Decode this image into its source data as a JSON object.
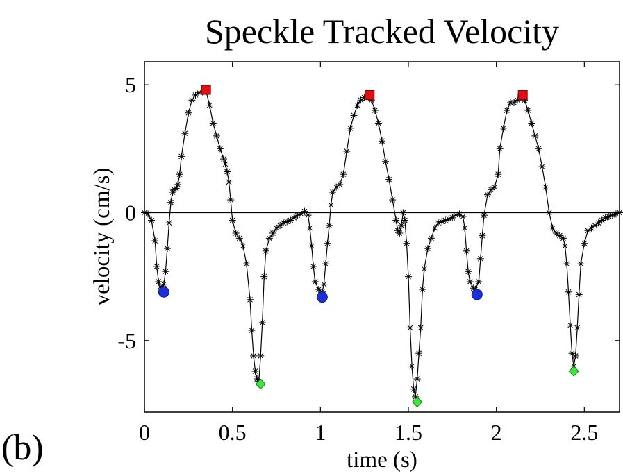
{
  "panel_label": "(b)",
  "chart_data": {
    "type": "line",
    "title": "Speckle Tracked Velocity",
    "xlabel": "time (s)",
    "ylabel": "velocity (cm/s)",
    "xlim": [
      0,
      2.7
    ],
    "ylim": [
      -7.8,
      5.9
    ],
    "xticks": [
      0,
      0.5,
      1,
      1.5,
      2,
      2.5
    ],
    "xtick_labels": [
      "0",
      "0.5",
      "1",
      "1.5",
      "2",
      "2.5"
    ],
    "yticks": [
      5,
      0,
      -5
    ],
    "ytick_labels": [
      "5",
      "0",
      "-5"
    ],
    "grid": false,
    "legend": "none",
    "zero_line": true,
    "colors": {
      "trace": "#000000",
      "blue_markers": "#1f2fd6",
      "red_markers": "#e01010",
      "green_markers": "#3ee63e"
    },
    "series": [
      {
        "marker": "asterisk",
        "points": [
          [
            0.0,
            0.0
          ],
          [
            0.02,
            -0.05
          ],
          [
            0.04,
            -0.3
          ],
          [
            0.06,
            -1.1
          ],
          [
            0.07,
            -2.1
          ],
          [
            0.08,
            -2.7
          ],
          [
            0.09,
            -2.9
          ],
          [
            0.1,
            -3.0
          ],
          [
            0.11,
            -2.8
          ],
          [
            0.12,
            -2.3
          ],
          [
            0.13,
            -1.4
          ],
          [
            0.14,
            -0.4
          ],
          [
            0.15,
            0.4
          ],
          [
            0.16,
            0.8
          ],
          [
            0.17,
            0.9
          ],
          [
            0.18,
            0.95
          ],
          [
            0.19,
            1.1
          ],
          [
            0.2,
            1.5
          ],
          [
            0.21,
            2.2
          ],
          [
            0.23,
            3.1
          ],
          [
            0.25,
            3.9
          ],
          [
            0.27,
            4.4
          ],
          [
            0.29,
            4.6
          ],
          [
            0.31,
            4.7
          ],
          [
            0.33,
            4.72
          ],
          [
            0.35,
            4.75
          ],
          [
            0.37,
            4.2
          ],
          [
            0.39,
            3.5
          ],
          [
            0.41,
            3.0
          ],
          [
            0.43,
            2.5
          ],
          [
            0.45,
            2.1
          ],
          [
            0.46,
            1.9
          ],
          [
            0.47,
            1.6
          ],
          [
            0.48,
            1.2
          ],
          [
            0.49,
            0.5
          ],
          [
            0.5,
            -0.3
          ],
          [
            0.52,
            -0.8
          ],
          [
            0.54,
            -1.0
          ],
          [
            0.56,
            -1.3
          ],
          [
            0.58,
            -2.0
          ],
          [
            0.6,
            -3.4
          ],
          [
            0.61,
            -4.6
          ],
          [
            0.62,
            -5.6
          ],
          [
            0.63,
            -6.2
          ],
          [
            0.64,
            -6.5
          ],
          [
            0.65,
            -6.6
          ],
          [
            0.66,
            -5.6
          ],
          [
            0.67,
            -4.3
          ],
          [
            0.68,
            -2.5
          ],
          [
            0.69,
            -1.5
          ],
          [
            0.71,
            -1.0
          ],
          [
            0.73,
            -0.8
          ],
          [
            0.75,
            -0.6
          ],
          [
            0.77,
            -0.5
          ],
          [
            0.79,
            -0.4
          ],
          [
            0.81,
            -0.35
          ],
          [
            0.83,
            -0.3
          ],
          [
            0.85,
            -0.2
          ],
          [
            0.87,
            -0.1
          ],
          [
            0.89,
            -0.05
          ],
          [
            0.91,
            0.05
          ],
          [
            0.93,
            -0.1
          ],
          [
            0.94,
            -0.6
          ],
          [
            0.95,
            -1.3
          ],
          [
            0.96,
            -2.1
          ],
          [
            0.97,
            -2.7
          ],
          [
            0.99,
            -3.0
          ],
          [
            1.01,
            -3.1
          ],
          [
            1.02,
            -2.8
          ],
          [
            1.03,
            -2.0
          ],
          [
            1.04,
            -1.2
          ],
          [
            1.05,
            -0.5
          ],
          [
            1.06,
            0.3
          ],
          [
            1.07,
            0.8
          ],
          [
            1.09,
            1.0
          ],
          [
            1.11,
            1.1
          ],
          [
            1.13,
            1.5
          ],
          [
            1.15,
            2.4
          ],
          [
            1.17,
            3.3
          ],
          [
            1.19,
            3.8
          ],
          [
            1.21,
            4.2
          ],
          [
            1.23,
            4.4
          ],
          [
            1.25,
            4.5
          ],
          [
            1.27,
            4.55
          ],
          [
            1.29,
            4.4
          ],
          [
            1.31,
            4.0
          ],
          [
            1.33,
            3.5
          ],
          [
            1.35,
            2.8
          ],
          [
            1.37,
            2.0
          ],
          [
            1.39,
            1.3
          ],
          [
            1.41,
            0.5
          ],
          [
            1.43,
            -0.3
          ],
          [
            1.44,
            -0.7
          ],
          [
            1.45,
            -0.8
          ],
          [
            1.46,
            -0.5
          ],
          [
            1.47,
            0.0
          ],
          [
            1.48,
            -0.3
          ],
          [
            1.49,
            -1.2
          ],
          [
            1.5,
            -2.5
          ],
          [
            1.51,
            -4.5
          ],
          [
            1.52,
            -6.0
          ],
          [
            1.53,
            -6.9
          ],
          [
            1.54,
            -7.2
          ],
          [
            1.55,
            -6.5
          ],
          [
            1.56,
            -5.5
          ],
          [
            1.57,
            -4.5
          ],
          [
            1.58,
            -3.0
          ],
          [
            1.59,
            -2.2
          ],
          [
            1.61,
            -1.4
          ],
          [
            1.63,
            -1.0
          ],
          [
            1.65,
            -0.6
          ],
          [
            1.67,
            -0.4
          ],
          [
            1.69,
            -0.35
          ],
          [
            1.71,
            -0.3
          ],
          [
            1.73,
            -0.25
          ],
          [
            1.75,
            -0.2
          ],
          [
            1.77,
            -0.1
          ],
          [
            1.79,
            -0.05
          ],
          [
            1.81,
            -0.15
          ],
          [
            1.82,
            -0.6
          ],
          [
            1.83,
            -1.5
          ],
          [
            1.84,
            -2.3
          ],
          [
            1.85,
            -2.7
          ],
          [
            1.87,
            -2.95
          ],
          [
            1.88,
            -3.0
          ],
          [
            1.9,
            -2.7
          ],
          [
            1.91,
            -1.8
          ],
          [
            1.92,
            -0.9
          ],
          [
            1.93,
            -0.1
          ],
          [
            1.95,
            0.7
          ],
          [
            1.97,
            0.9
          ],
          [
            1.99,
            1.0
          ],
          [
            2.01,
            1.5
          ],
          [
            2.02,
            2.5
          ],
          [
            2.04,
            3.3
          ],
          [
            2.06,
            4.0
          ],
          [
            2.08,
            4.3
          ],
          [
            2.1,
            4.3
          ],
          [
            2.12,
            4.4
          ],
          [
            2.14,
            4.6
          ],
          [
            2.16,
            4.4
          ],
          [
            2.18,
            4.0
          ],
          [
            2.2,
            3.5
          ],
          [
            2.22,
            3.0
          ],
          [
            2.24,
            2.5
          ],
          [
            2.26,
            1.8
          ],
          [
            2.28,
            1.0
          ],
          [
            2.3,
            0.0
          ],
          [
            2.32,
            -0.6
          ],
          [
            2.34,
            -0.8
          ],
          [
            2.36,
            -0.9
          ],
          [
            2.38,
            -1.0
          ],
          [
            2.39,
            -1.3
          ],
          [
            2.4,
            -2.0
          ],
          [
            2.41,
            -3.1
          ],
          [
            2.42,
            -4.4
          ],
          [
            2.43,
            -5.5
          ],
          [
            2.44,
            -6.0
          ],
          [
            2.45,
            -5.6
          ],
          [
            2.46,
            -4.5
          ],
          [
            2.47,
            -3.2
          ],
          [
            2.48,
            -2.0
          ],
          [
            2.5,
            -1.2
          ],
          [
            2.52,
            -0.7
          ],
          [
            2.54,
            -0.6
          ],
          [
            2.56,
            -0.5
          ],
          [
            2.58,
            -0.4
          ],
          [
            2.6,
            -0.3
          ],
          [
            2.62,
            -0.2
          ],
          [
            2.64,
            -0.15
          ],
          [
            2.66,
            -0.1
          ],
          [
            2.68,
            -0.05
          ],
          [
            2.7,
            0.0
          ]
        ]
      }
    ],
    "blue_circles": [
      [
        0.11,
        -3.1
      ],
      [
        1.01,
        -3.3
      ],
      [
        1.89,
        -3.2
      ]
    ],
    "red_squares": [
      [
        0.35,
        4.8
      ],
      [
        1.28,
        4.6
      ],
      [
        2.15,
        4.6
      ]
    ],
    "green_diamonds": [
      [
        0.66,
        -6.7
      ],
      [
        1.55,
        -7.4
      ],
      [
        2.44,
        -6.2
      ]
    ]
  }
}
